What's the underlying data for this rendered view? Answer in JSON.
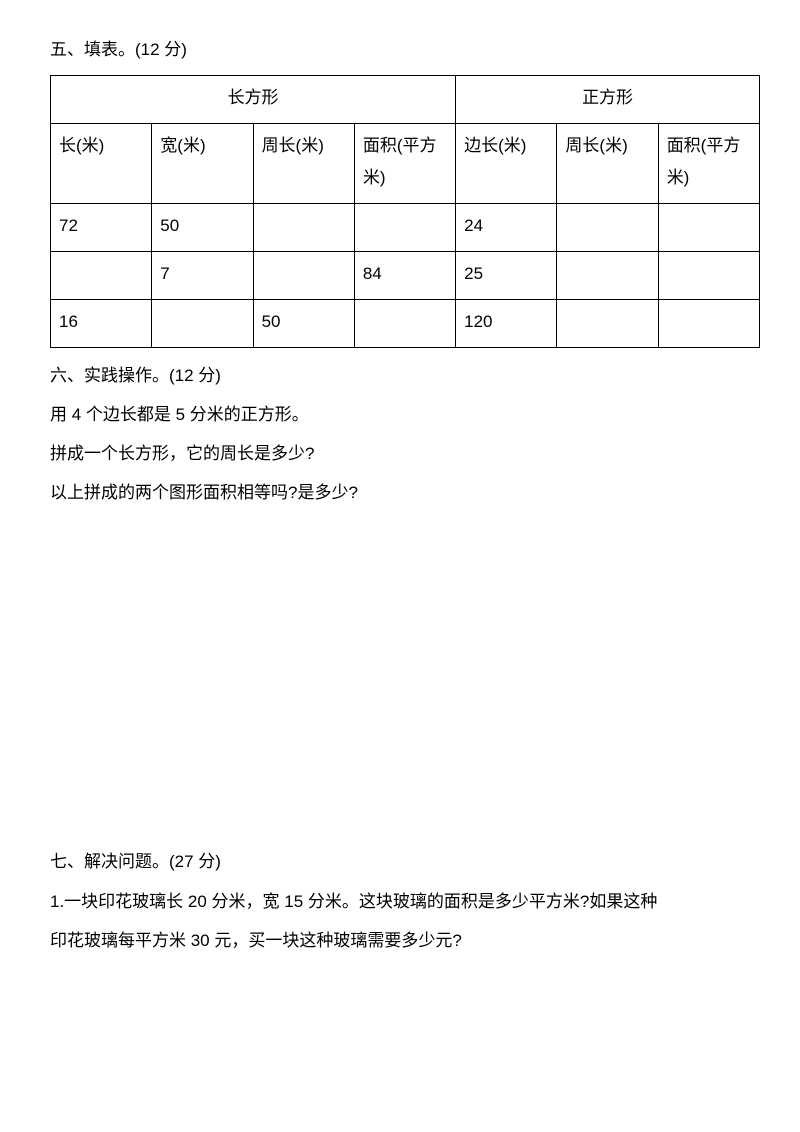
{
  "section5": {
    "title": "五、填表。(12 分)",
    "groupHeaders": [
      "长方形",
      "正方形"
    ],
    "columns": [
      "长(米)",
      "宽(米)",
      "周长(米)",
      "面积(平方米)",
      "边长(米)",
      "周长(米)",
      "面积(平方米)"
    ],
    "rows": [
      [
        "72",
        "50",
        "",
        "",
        "24",
        "",
        ""
      ],
      [
        "",
        "7",
        "",
        "84",
        "25",
        "",
        ""
      ],
      [
        "16",
        "",
        "50",
        "",
        "120",
        "",
        ""
      ]
    ]
  },
  "section6": {
    "title": "六、实践操作。(12 分)",
    "line1": "用 4 个边长都是 5 分米的正方形。",
    "line2": "拼成一个长方形，它的周长是多少?",
    "line3": "以上拼成的两个图形面积相等吗?是多少?"
  },
  "section7": {
    "title": "七、解决问题。(27 分)",
    "q1a": "1.一块印花玻璃长 20 分米，宽 15 分米。这块玻璃的面积是多少平方米?如果这种",
    "q1b": "印花玻璃每平方米 30 元，买一块这种玻璃需要多少元?"
  },
  "style": {
    "background": "#ffffff",
    "text_color": "#000000",
    "border_color": "#000000",
    "font_size": 17
  }
}
